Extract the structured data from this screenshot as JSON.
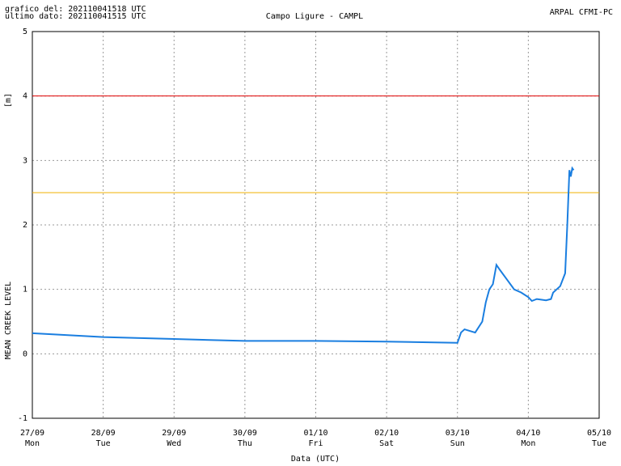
{
  "header": {
    "generated": "grafico del: 202110041518 UTC",
    "last_data": "ultimo dato: 202110041515 UTC",
    "source": "ARPAL CFMI-PC"
  },
  "chart_data": {
    "type": "line",
    "title": "Campo Ligure - CAMPL",
    "y_label": "MEAN CREEK LEVEL",
    "y_unit": "[m]",
    "x_label": "Data (UTC)",
    "ylim": [
      -1,
      5
    ],
    "yticks": [
      -1,
      0,
      1,
      2,
      3,
      4,
      5
    ],
    "xlim": [
      0,
      8
    ],
    "xticks": [
      {
        "value": 0,
        "label": "27/09"
      },
      {
        "value": 1,
        "label": "28/09"
      },
      {
        "value": 2,
        "label": "29/09"
      },
      {
        "value": 3,
        "label": "30/09"
      },
      {
        "value": 4,
        "label": "01/10"
      },
      {
        "value": 5,
        "label": "02/10"
      },
      {
        "value": 6,
        "label": "03/10"
      },
      {
        "value": 7,
        "label": "04/10"
      },
      {
        "value": 8,
        "label": "05/10"
      }
    ],
    "xtick_weekdays": [
      "Mon",
      "Tue",
      "Wed",
      "Thu",
      "Fri",
      "Sat",
      "Sun",
      "Mon",
      "Tue"
    ],
    "grid": true,
    "thresholds": [
      {
        "value": 4,
        "color": "#e00000"
      },
      {
        "value": 2.5,
        "color": "#f0b000"
      }
    ],
    "series": [
      {
        "color": "#1a7ee0",
        "x": [
          0,
          1,
          2,
          3,
          4,
          5,
          6,
          6.05,
          6.1,
          6.25,
          6.35,
          6.4,
          6.45,
          6.5,
          6.55,
          6.6,
          6.7,
          6.8,
          6.9,
          7,
          7.05,
          7.12,
          7.25,
          7.32,
          7.35,
          7.45,
          7.52,
          7.55,
          7.58,
          7.6,
          7.62,
          7.64
        ],
        "values": [
          0.32,
          0.26,
          0.23,
          0.2,
          0.2,
          0.19,
          0.17,
          0.33,
          0.38,
          0.33,
          0.5,
          0.8,
          1.0,
          1.08,
          1.38,
          1.3,
          1.15,
          1.0,
          0.95,
          0.88,
          0.82,
          0.85,
          0.83,
          0.85,
          0.95,
          1.05,
          1.25,
          2.0,
          2.85,
          2.75,
          2.88,
          2.85
        ]
      }
    ]
  }
}
